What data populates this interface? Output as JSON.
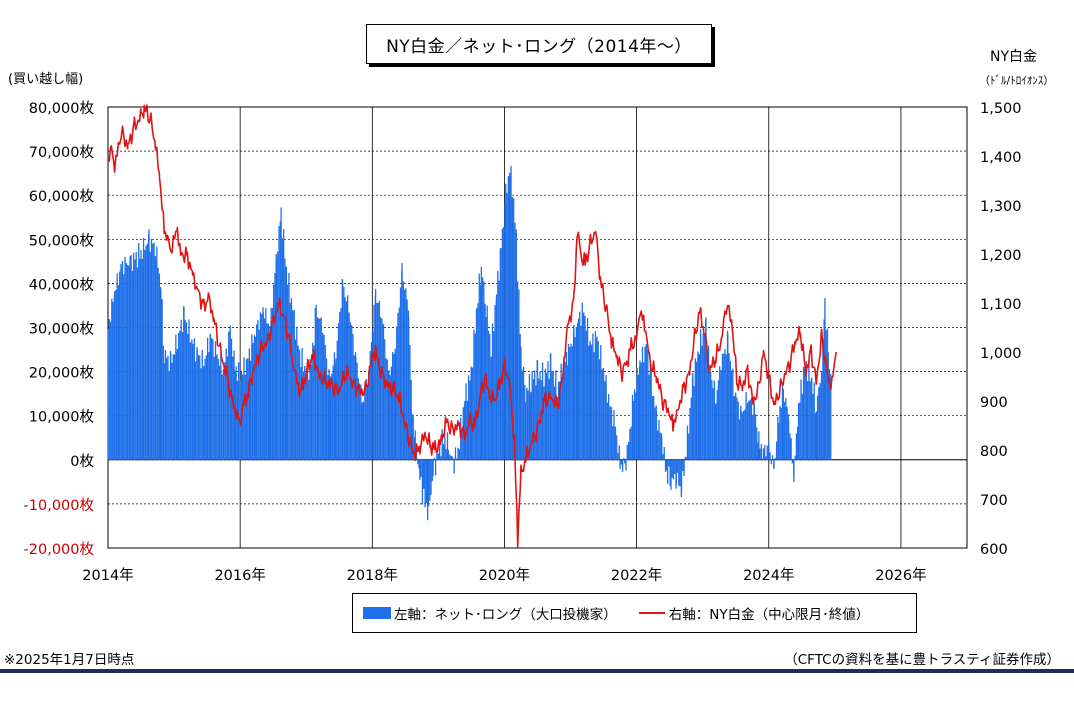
{
  "chart_data": {
    "type": "bar+line",
    "title": "NY白金／ネット･ロング（2014年～）",
    "left_axis": {
      "unit_label": "(買い越し幅)",
      "ylim": [
        -20000,
        80000
      ],
      "ticks": [
        80000,
        70000,
        60000,
        50000,
        40000,
        30000,
        20000,
        10000,
        0,
        -10000,
        -20000
      ],
      "tick_labels": [
        "80,000枚",
        "70,000枚",
        "60,000枚",
        "50,000枚",
        "40,000枚",
        "30,000枚",
        "20,000枚",
        "10,000枚",
        "0枚",
        "-10,000枚",
        "-20,000枚"
      ]
    },
    "right_axis": {
      "label": "NY白金",
      "unit_label": "（ﾄﾞﾙ/ﾄﾛｲｵﾝｽ）",
      "ylim": [
        600,
        1500
      ],
      "ticks": [
        1500,
        1400,
        1300,
        1200,
        1100,
        1000,
        900,
        800,
        700,
        600
      ],
      "tick_labels": [
        "1,500",
        "1,400",
        "1,300",
        "1,200",
        "1,100",
        "1,000",
        "900",
        "800",
        "700",
        "600"
      ]
    },
    "x_axis": {
      "xlim": [
        2014,
        2027
      ],
      "ticks": [
        2014,
        2016,
        2018,
        2020,
        2022,
        2024,
        2026
      ],
      "tick_labels": [
        "2014年",
        "2016年",
        "2018年",
        "2020年",
        "2022年",
        "2024年",
        "2026年"
      ]
    },
    "grid": true,
    "series": [
      {
        "name": "左軸：ネット･ロング（大口投機家）",
        "type": "bar",
        "axis": "left",
        "color": "#1f6fe8",
        "points": [
          [
            2014.0,
            30000
          ],
          [
            2014.1,
            38000
          ],
          [
            2014.2,
            44000
          ],
          [
            2014.35,
            45000
          ],
          [
            2014.5,
            47000
          ],
          [
            2014.62,
            50000
          ],
          [
            2014.72,
            48000
          ],
          [
            2014.8,
            40000
          ],
          [
            2014.85,
            24000
          ],
          [
            2014.95,
            22000
          ],
          [
            2015.05,
            27000
          ],
          [
            2015.15,
            33000
          ],
          [
            2015.25,
            28000
          ],
          [
            2015.35,
            24000
          ],
          [
            2015.45,
            22000
          ],
          [
            2015.55,
            28000
          ],
          [
            2015.65,
            24000
          ],
          [
            2015.75,
            20000
          ],
          [
            2015.85,
            30000
          ],
          [
            2015.92,
            21000
          ],
          [
            2016.0,
            19000
          ],
          [
            2016.12,
            23000
          ],
          [
            2016.25,
            30000
          ],
          [
            2016.35,
            34000
          ],
          [
            2016.45,
            30000
          ],
          [
            2016.55,
            46000
          ],
          [
            2016.62,
            56000
          ],
          [
            2016.7,
            43000
          ],
          [
            2016.8,
            34000
          ],
          [
            2016.9,
            24000
          ],
          [
            2017.0,
            20000
          ],
          [
            2017.08,
            22000
          ],
          [
            2017.15,
            34000
          ],
          [
            2017.25,
            30000
          ],
          [
            2017.35,
            18000
          ],
          [
            2017.45,
            24000
          ],
          [
            2017.55,
            40000
          ],
          [
            2017.65,
            34000
          ],
          [
            2017.75,
            23000
          ],
          [
            2017.85,
            13000
          ],
          [
            2017.95,
            20000
          ],
          [
            2018.05,
            38000
          ],
          [
            2018.15,
            32000
          ],
          [
            2018.25,
            19000
          ],
          [
            2018.35,
            26000
          ],
          [
            2018.45,
            43000
          ],
          [
            2018.55,
            34000
          ],
          [
            2018.6,
            12000
          ],
          [
            2018.65,
            5000
          ],
          [
            2018.72,
            -4000
          ],
          [
            2018.78,
            -9000
          ],
          [
            2018.85,
            -12000
          ],
          [
            2018.92,
            -3000
          ],
          [
            2019.0,
            2000
          ],
          [
            2019.08,
            5000
          ],
          [
            2019.15,
            3000
          ],
          [
            2019.22,
            -1000
          ],
          [
            2019.3,
            2000
          ],
          [
            2019.4,
            14000
          ],
          [
            2019.5,
            20000
          ],
          [
            2019.58,
            34000
          ],
          [
            2019.65,
            44000
          ],
          [
            2019.72,
            35000
          ],
          [
            2019.8,
            25000
          ],
          [
            2019.88,
            38000
          ],
          [
            2019.95,
            48000
          ],
          [
            2020.02,
            60000
          ],
          [
            2020.08,
            66000
          ],
          [
            2020.12,
            62000
          ],
          [
            2020.18,
            50000
          ],
          [
            2020.25,
            25000
          ],
          [
            2020.32,
            15000
          ],
          [
            2020.4,
            18000
          ],
          [
            2020.5,
            20000
          ],
          [
            2020.6,
            19000
          ],
          [
            2020.7,
            22000
          ],
          [
            2020.8,
            16000
          ],
          [
            2020.88,
            21000
          ],
          [
            2020.95,
            24000
          ],
          [
            2021.05,
            28000
          ],
          [
            2021.12,
            32000
          ],
          [
            2021.2,
            34000
          ],
          [
            2021.3,
            26000
          ],
          [
            2021.4,
            28000
          ],
          [
            2021.5,
            20000
          ],
          [
            2021.6,
            12000
          ],
          [
            2021.68,
            8000
          ],
          [
            2021.75,
            -1000
          ],
          [
            2021.82,
            -2000
          ],
          [
            2021.88,
            4000
          ],
          [
            2021.95,
            14000
          ],
          [
            2022.05,
            22000
          ],
          [
            2022.15,
            26000
          ],
          [
            2022.22,
            18000
          ],
          [
            2022.3,
            10000
          ],
          [
            2022.38,
            5000
          ],
          [
            2022.45,
            -3000
          ],
          [
            2022.52,
            -5000
          ],
          [
            2022.6,
            -4000
          ],
          [
            2022.68,
            -7000
          ],
          [
            2022.75,
            2000
          ],
          [
            2022.85,
            18000
          ],
          [
            2022.95,
            26000
          ],
          [
            2023.05,
            30000
          ],
          [
            2023.12,
            20000
          ],
          [
            2023.2,
            14000
          ],
          [
            2023.28,
            22000
          ],
          [
            2023.38,
            27000
          ],
          [
            2023.48,
            16000
          ],
          [
            2023.58,
            10000
          ],
          [
            2023.68,
            14000
          ],
          [
            2023.78,
            12000
          ],
          [
            2023.85,
            4000
          ],
          [
            2023.92,
            2000
          ],
          [
            2024.0,
            3000
          ],
          [
            2024.08,
            -2000
          ],
          [
            2024.15,
            10000
          ],
          [
            2024.22,
            16000
          ],
          [
            2024.3,
            10000
          ],
          [
            2024.38,
            -4000
          ],
          [
            2024.45,
            12000
          ],
          [
            2024.55,
            22000
          ],
          [
            2024.65,
            18000
          ],
          [
            2024.72,
            12000
          ],
          [
            2024.8,
            20000
          ],
          [
            2024.85,
            36000
          ],
          [
            2024.9,
            24000
          ],
          [
            2024.95,
            18000
          ]
        ]
      },
      {
        "name": "右軸：NY白金（中心限月･終値）",
        "type": "line",
        "axis": "right",
        "color": "#e01414",
        "points": [
          [
            2014.0,
            1390
          ],
          [
            2014.05,
            1420
          ],
          [
            2014.1,
            1375
          ],
          [
            2014.2,
            1450
          ],
          [
            2014.3,
            1420
          ],
          [
            2014.4,
            1460
          ],
          [
            2014.5,
            1480
          ],
          [
            2014.55,
            1500
          ],
          [
            2014.65,
            1470
          ],
          [
            2014.72,
            1420
          ],
          [
            2014.78,
            1360
          ],
          [
            2014.85,
            1250
          ],
          [
            2014.9,
            1230
          ],
          [
            2014.95,
            1210
          ],
          [
            2015.05,
            1250
          ],
          [
            2015.1,
            1200
          ],
          [
            2015.2,
            1195
          ],
          [
            2015.28,
            1160
          ],
          [
            2015.35,
            1130
          ],
          [
            2015.45,
            1090
          ],
          [
            2015.52,
            1110
          ],
          [
            2015.6,
            1070
          ],
          [
            2015.7,
            1000
          ],
          [
            2015.8,
            950
          ],
          [
            2015.88,
            900
          ],
          [
            2015.95,
            870
          ],
          [
            2016.0,
            860
          ],
          [
            2016.05,
            890
          ],
          [
            2016.12,
            920
          ],
          [
            2016.2,
            960
          ],
          [
            2016.3,
            1000
          ],
          [
            2016.4,
            1020
          ],
          [
            2016.5,
            1060
          ],
          [
            2016.58,
            1100
          ],
          [
            2016.65,
            1080
          ],
          [
            2016.75,
            1020
          ],
          [
            2016.82,
            960
          ],
          [
            2016.9,
            920
          ],
          [
            2016.95,
            930
          ],
          [
            2017.05,
            980
          ],
          [
            2017.12,
            990
          ],
          [
            2017.2,
            950
          ],
          [
            2017.3,
            940
          ],
          [
            2017.4,
            930
          ],
          [
            2017.5,
            920
          ],
          [
            2017.6,
            960
          ],
          [
            2017.7,
            940
          ],
          [
            2017.8,
            920
          ],
          [
            2017.9,
            920
          ],
          [
            2018.0,
            990
          ],
          [
            2018.05,
            1000
          ],
          [
            2018.15,
            950
          ],
          [
            2018.25,
            930
          ],
          [
            2018.35,
            920
          ],
          [
            2018.42,
            900
          ],
          [
            2018.5,
            850
          ],
          [
            2018.58,
            810
          ],
          [
            2018.65,
            790
          ],
          [
            2018.72,
            810
          ],
          [
            2018.8,
            830
          ],
          [
            2018.88,
            810
          ],
          [
            2018.95,
            800
          ],
          [
            2019.05,
            820
          ],
          [
            2019.12,
            860
          ],
          [
            2019.2,
            840
          ],
          [
            2019.3,
            850
          ],
          [
            2019.4,
            830
          ],
          [
            2019.48,
            860
          ],
          [
            2019.55,
            850
          ],
          [
            2019.62,
            900
          ],
          [
            2019.7,
            950
          ],
          [
            2019.78,
            910
          ],
          [
            2019.85,
            900
          ],
          [
            2019.92,
            930
          ],
          [
            2020.0,
            970
          ],
          [
            2020.05,
            960
          ],
          [
            2020.1,
            900
          ],
          [
            2020.15,
            820
          ],
          [
            2020.2,
            620
          ],
          [
            2020.25,
            750
          ],
          [
            2020.32,
            780
          ],
          [
            2020.42,
            820
          ],
          [
            2020.5,
            840
          ],
          [
            2020.6,
            900
          ],
          [
            2020.7,
            910
          ],
          [
            2020.8,
            890
          ],
          [
            2020.88,
            950
          ],
          [
            2020.95,
            1050
          ],
          [
            2021.05,
            1100
          ],
          [
            2021.1,
            1250
          ],
          [
            2021.15,
            1200
          ],
          [
            2021.22,
            1180
          ],
          [
            2021.3,
            1220
          ],
          [
            2021.38,
            1250
          ],
          [
            2021.45,
            1150
          ],
          [
            2021.55,
            1080
          ],
          [
            2021.62,
            1020
          ],
          [
            2021.7,
            990
          ],
          [
            2021.78,
            960
          ],
          [
            2021.85,
            980
          ],
          [
            2021.92,
            1010
          ],
          [
            2022.0,
            1030
          ],
          [
            2022.05,
            1080
          ],
          [
            2022.12,
            1060
          ],
          [
            2022.2,
            980
          ],
          [
            2022.3,
            950
          ],
          [
            2022.4,
            900
          ],
          [
            2022.48,
            880
          ],
          [
            2022.55,
            850
          ],
          [
            2022.62,
            880
          ],
          [
            2022.7,
            920
          ],
          [
            2022.8,
            960
          ],
          [
            2022.88,
            1030
          ],
          [
            2022.95,
            1080
          ],
          [
            2023.02,
            1050
          ],
          [
            2023.1,
            960
          ],
          [
            2023.2,
            990
          ],
          [
            2023.28,
            1020
          ],
          [
            2023.36,
            1100
          ],
          [
            2023.44,
            1060
          ],
          [
            2023.52,
            940
          ],
          [
            2023.6,
            930
          ],
          [
            2023.68,
            960
          ],
          [
            2023.76,
            900
          ],
          [
            2023.84,
            920
          ],
          [
            2023.92,
            1000
          ],
          [
            2024.0,
            950
          ],
          [
            2024.08,
            890
          ],
          [
            2024.16,
            920
          ],
          [
            2024.24,
            950
          ],
          [
            2024.32,
            980
          ],
          [
            2024.4,
            1020
          ],
          [
            2024.48,
            1040
          ],
          [
            2024.56,
            960
          ],
          [
            2024.64,
            1000
          ],
          [
            2024.72,
            940
          ],
          [
            2024.8,
            1030
          ],
          [
            2024.86,
            980
          ],
          [
            2024.92,
            930
          ],
          [
            2024.97,
            950
          ],
          [
            2025.02,
            1000
          ]
        ]
      }
    ],
    "legend_placement": "bottom"
  },
  "legend": {
    "bar_label": "左軸：ネット･ロング（大口投機家）",
    "line_label": "右軸：NY白金（中心限月･終値）"
  },
  "footnote_left": "※2025年1月7日時点",
  "footnote_right": "（CFTCの資料を基に豊トラスティ証券作成）",
  "colors": {
    "bar": "#1f6fe8",
    "line": "#e01414",
    "negative_tick": "#cc0000",
    "bottom_rule": "#1b2d5c"
  }
}
